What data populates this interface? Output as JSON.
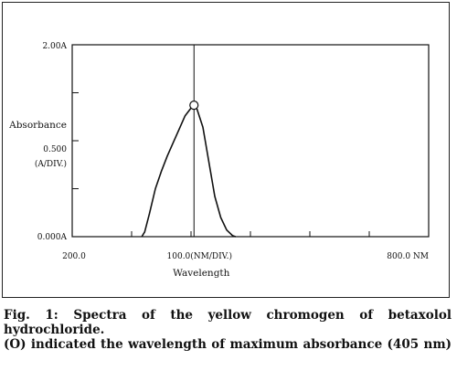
{
  "chart_data": {
    "type": "line",
    "title": "",
    "xlabel": "Wavelength",
    "ylabel": "Absorbance",
    "xlim": [
      200,
      800
    ],
    "ylim": [
      0,
      2.0
    ],
    "x_tick_labels": [
      "200.0",
      "100.0(NM/DIV.)",
      "800.0 NM"
    ],
    "y_tick_labels": [
      "2.00A",
      "0.500\n(A/DIV.)",
      "0.000A"
    ],
    "y_scale_label_1": "0.500",
    "y_scale_label_2": "(A/DIV.)",
    "grid": false,
    "marker": {
      "symbol": "O",
      "x": 405,
      "y": 1.37
    },
    "vertical_line_x": 405,
    "series": [
      {
        "x": [
          317,
          322,
          330,
          340,
          350,
          360,
          370,
          380,
          390,
          400,
          405,
          410,
          420,
          430,
          440,
          450,
          460,
          470,
          475
        ],
        "y": [
          0.0,
          0.05,
          0.24,
          0.5,
          0.68,
          0.84,
          0.98,
          1.12,
          1.26,
          1.34,
          1.37,
          1.33,
          1.14,
          0.78,
          0.42,
          0.2,
          0.07,
          0.01,
          0.0
        ]
      }
    ]
  },
  "caption": {
    "line1": "Fig. 1: Spectra of the yellow chromogen of betaxolol",
    "line2": "hydrochloride.",
    "line3": "(O) indicated the wavelength of maximum absorbance (405 nm)"
  },
  "colors": {
    "ink": "#111111",
    "background": "#ffffff"
  }
}
